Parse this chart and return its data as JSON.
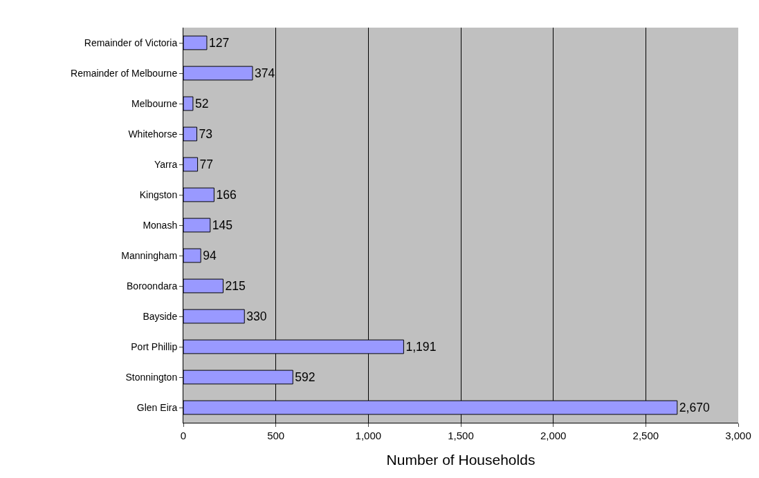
{
  "chart_data": {
    "type": "bar",
    "orientation": "horizontal",
    "xlabel": "Number of Households",
    "categories": [
      "Remainder of Victoria",
      "Remainder of Melbourne",
      "Melbourne",
      "Whitehorse",
      "Yarra",
      "Kingston",
      "Monash",
      "Manningham",
      "Boroondara",
      "Bayside",
      "Port Phillip",
      "Stonnington",
      "Glen Eira"
    ],
    "values": [
      127,
      374,
      52,
      73,
      77,
      166,
      145,
      94,
      215,
      330,
      1191,
      592,
      2670
    ],
    "value_labels": [
      "127",
      "374",
      "52",
      "73",
      "77",
      "166",
      "145",
      "94",
      "215",
      "330",
      "1,191",
      "592",
      "2,670"
    ],
    "color": "#9999ff",
    "xlim": [
      0,
      3000
    ],
    "xticks": [
      0,
      {
        "value": 500,
        "label": "500"
      },
      {
        "value": 1000,
        "label": "1,000"
      },
      {
        "value": 1500,
        "label": "1,500"
      },
      {
        "value": 2000,
        "label": "2,000"
      },
      {
        "value": 2500,
        "label": "2,500"
      },
      {
        "value": 3000,
        "label": "3,000"
      }
    ],
    "grid": "x",
    "legend": false
  }
}
